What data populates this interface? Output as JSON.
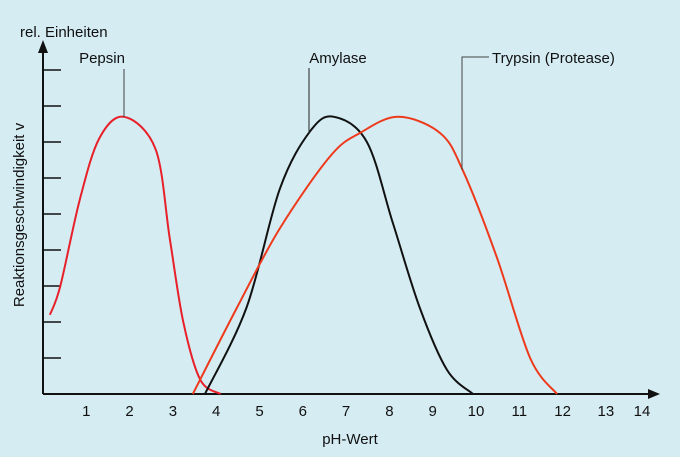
{
  "chart_data": {
    "type": "line",
    "title": "",
    "xlabel": "pH-Wert",
    "ylabel": "Reaktionsgeschwindigkeit v",
    "yunit_label": "rel. Einheiten",
    "xlim": [
      0,
      14.5
    ],
    "ylim": [
      0,
      9.7
    ],
    "xticks": [
      "1",
      "2",
      "3",
      "4",
      "5",
      "6",
      "7",
      "8",
      "9",
      "10",
      "11",
      "12",
      "13",
      "14"
    ],
    "yticks": [
      1,
      2,
      3,
      4,
      5,
      6,
      7,
      8,
      9
    ],
    "grid": false,
    "colors": {
      "background": "#d5ecf3",
      "pepsin": "#e8202a",
      "amylase": "#111111",
      "trypsin": "#ee3a1c",
      "axis": "#111111"
    },
    "series": [
      {
        "name": "Pepsin",
        "label_pos": [
          1.87,
          9.1
        ],
        "points": [
          [
            0.16,
            2.2
          ],
          [
            0.4,
            3.0
          ],
          [
            0.85,
            5.4
          ],
          [
            1.3,
            7.1
          ],
          [
            1.87,
            7.7
          ],
          [
            2.6,
            6.8
          ],
          [
            2.93,
            4.3
          ],
          [
            3.24,
            2.0
          ],
          [
            3.63,
            0.4
          ],
          [
            4.1,
            0
          ]
        ]
      },
      {
        "name": "Amylase",
        "points": [
          [
            3.74,
            0
          ],
          [
            4.7,
            2.4
          ],
          [
            5.47,
            5.7
          ],
          [
            6.17,
            7.3
          ],
          [
            6.72,
            7.7
          ],
          [
            7.48,
            7.0
          ],
          [
            8.08,
            4.75
          ],
          [
            8.7,
            2.4
          ],
          [
            9.33,
            0.67
          ],
          [
            9.93,
            0
          ]
        ]
      },
      {
        "name": "Trypsin (Protease)",
        "points": [
          [
            3.46,
            0
          ],
          [
            4.48,
            2.4
          ],
          [
            5.47,
            4.6
          ],
          [
            6.63,
            6.6
          ],
          [
            7.32,
            7.25
          ],
          [
            8.2,
            7.7
          ],
          [
            9.17,
            7.25
          ],
          [
            9.7,
            6.2
          ],
          [
            10.48,
            3.8
          ],
          [
            11.25,
            1.0
          ],
          [
            11.87,
            0
          ]
        ]
      }
    ]
  }
}
